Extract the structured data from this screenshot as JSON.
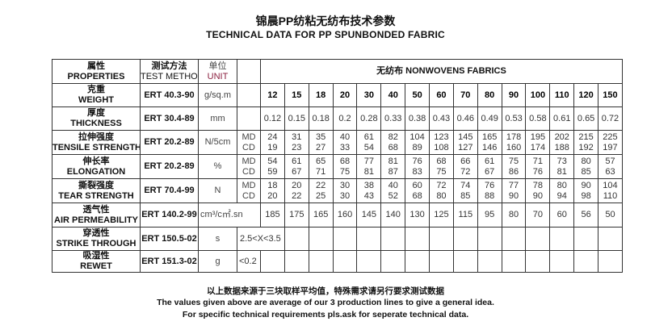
{
  "title": {
    "cn": "锦晨PP纺粘无纺布技术参数",
    "en": "TECHNICAL DATA FOR PP SPUNBONDED FABRIC"
  },
  "header": {
    "properties_cn": "属性",
    "properties_en": "PROPERTIES",
    "method_cn": "测试方法",
    "method_en": "TEST METHOD",
    "unit_cn": "单位",
    "unit_en": "UNIT",
    "fabrics": "无纺布 NONWOVENS FABRICS"
  },
  "md": "MD",
  "cd": "CD",
  "weights": [
    "12",
    "15",
    "18",
    "20",
    "30",
    "40",
    "50",
    "60",
    "70",
    "80",
    "90",
    "100",
    "110",
    "120",
    "150"
  ],
  "rows": {
    "weight": {
      "cn": "克重",
      "en": "WEIGHT",
      "method": "ERT 40.3-90",
      "unit": "g/sq.m"
    },
    "thickness": {
      "cn": "厚度",
      "en": "THICKNESS",
      "method": "ERT 30.4-89",
      "unit": "mm",
      "values": [
        "0.12",
        "0.15",
        "0.18",
        "0.2",
        "0.28",
        "0.33",
        "0.38",
        "0.43",
        "0.46",
        "0.49",
        "0.53",
        "0.58",
        "0.61",
        "0.65",
        "0.72"
      ]
    },
    "tensile": {
      "cn": "拉伸强度",
      "en": "TENSILE STRENGTH",
      "method": "ERT 20.2-89",
      "unit": "N/5cm",
      "md": [
        "24",
        "31",
        "35",
        "40",
        "61",
        "82",
        "104",
        "123",
        "145",
        "165",
        "178",
        "195",
        "202",
        "215",
        "225"
      ],
      "cd": [
        "19",
        "23",
        "27",
        "33",
        "54",
        "68",
        "89",
        "108",
        "127",
        "146",
        "160",
        "174",
        "188",
        "192",
        "197"
      ]
    },
    "elongation": {
      "cn": "伸长率",
      "en": "ELONGATION",
      "method": "ERT 20.2-89",
      "unit": "%",
      "md": [
        "54",
        "61",
        "65",
        "68",
        "77",
        "81",
        "76",
        "68",
        "66",
        "61",
        "75",
        "71",
        "73",
        "80",
        "57"
      ],
      "cd": [
        "59",
        "67",
        "71",
        "75",
        "81",
        "87",
        "83",
        "75",
        "72",
        "67",
        "86",
        "76",
        "81",
        "85",
        "63"
      ]
    },
    "tear": {
      "cn": "撕裂强度",
      "en": "TEAR STRENGTH",
      "method": "ERT 70.4-99",
      "unit": "N",
      "md": [
        "18",
        "20",
        "22",
        "30",
        "38",
        "40",
        "60",
        "72",
        "74",
        "76",
        "77",
        "78",
        "80",
        "90",
        "104"
      ],
      "cd": [
        "20",
        "22",
        "25",
        "30",
        "43",
        "52",
        "68",
        "80",
        "85",
        "88",
        "90",
        "90",
        "94",
        "98",
        "110"
      ]
    },
    "air": {
      "cn": "透气性",
      "en": "AIR PERMEABILITY",
      "method": "ERT 140.2-99",
      "unit": "cm³/c㎡.sn",
      "values": [
        "185",
        "175",
        "165",
        "160",
        "145",
        "140",
        "130",
        "125",
        "115",
        "95",
        "80",
        "70",
        "60",
        "56",
        "50"
      ]
    },
    "strike": {
      "cn": "穿透性",
      "en": "STRIKE THROUGH",
      "method": "ERT 150.5-02",
      "unit": "s",
      "value": "2.5<X<3.5"
    },
    "rewet": {
      "cn": "吸湿性",
      "en": "REWET",
      "method": "ERT 151.3-02",
      "unit": "g",
      "value": "<0.2"
    }
  },
  "footer": {
    "cn": "以上数据来源于三块取样平均值，特殊需求请另行要求测试数据",
    "en1": "The values given above are average of our 3 production lines to give a general idea.",
    "en2": "For specific technical requirements pls.ask for seperate technical data."
  }
}
